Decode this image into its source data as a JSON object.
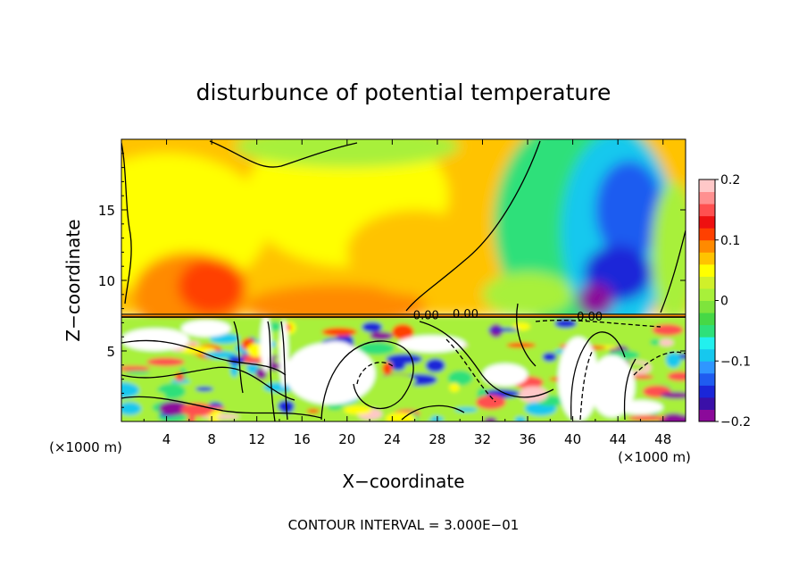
{
  "chart_data": {
    "type": "heatmap",
    "title": "disturbunce of potential temperature",
    "xlabel": "X−coordinate",
    "ylabel": "Z−coordinate",
    "x_unit_label": "(×1000 m)",
    "z_unit_label": "(×1000 m)",
    "footer": "CONTOUR INTERVAL = 3.000E−01",
    "xlim": [
      0,
      50
    ],
    "ylim": [
      0,
      20
    ],
    "x_ticks": [
      4,
      8,
      12,
      16,
      20,
      24,
      28,
      32,
      36,
      40,
      44,
      48
    ],
    "y_ticks": [
      5,
      10,
      15
    ],
    "colorbar": {
      "min": -0.2,
      "max": 0.2,
      "tick_values": [
        0.2,
        0.1,
        0,
        -0.1,
        -0.2
      ],
      "tick_labels": [
        "0.2",
        "0.1",
        "0",
        "−0.1",
        "−0.2"
      ],
      "colors": [
        "#8b0a9a",
        "#3a10a8",
        "#1a26d8",
        "#1f5cf0",
        "#2f96ff",
        "#16c8ee",
        "#22f0ee",
        "#2ee07a",
        "#46d846",
        "#7ee43c",
        "#a8f03a",
        "#d0f02a",
        "#ffff00",
        "#ffc300",
        "#ff8a00",
        "#ff4000",
        "#ee1010",
        "#ff5050",
        "#ff9090",
        "#ffc8c8"
      ]
    },
    "contour_labels": [
      "0.00",
      "0.00",
      "0.00"
    ]
  }
}
